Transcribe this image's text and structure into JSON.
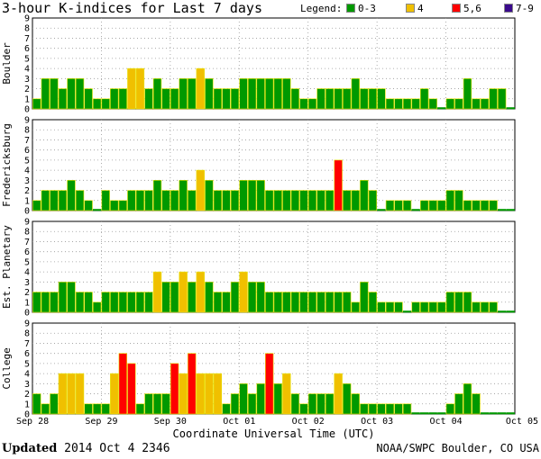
{
  "chart_data": {
    "type": "bar",
    "title": "3-hour K-indices for Last 7 days",
    "legend": {
      "label": "Legend:",
      "entries": [
        {
          "label": "0-3",
          "color": "#009900"
        },
        {
          "label": "4",
          "color": "#f0c000"
        },
        {
          "label": "5,6",
          "color": "#ff0000"
        },
        {
          "label": "7-9",
          "color": "#3a0a8c"
        }
      ]
    },
    "xlabel": "Coordinate Universal Time (UTC)",
    "x_ticks": [
      "Sep 28",
      "Sep 29",
      "Sep 30",
      "Oct 01",
      "Oct 02",
      "Oct 03",
      "Oct 04",
      "Oct 05"
    ],
    "y_ticks": [
      "0",
      "1",
      "2",
      "3",
      "4",
      "5",
      "6",
      "7",
      "8",
      "9"
    ],
    "ylim": [
      0,
      9
    ],
    "panels": [
      {
        "name": "Boulder",
        "values": [
          1,
          3,
          3,
          2,
          3,
          3,
          2,
          1,
          1,
          2,
          2,
          4,
          4,
          2,
          3,
          2,
          2,
          3,
          3,
          4,
          3,
          2,
          2,
          2,
          3,
          3,
          3,
          3,
          3,
          3,
          2,
          1,
          1,
          2,
          2,
          2,
          2,
          3,
          2,
          2,
          2,
          1,
          1,
          1,
          1,
          2,
          1,
          0,
          1,
          1,
          3,
          1,
          1,
          2,
          2,
          0
        ]
      },
      {
        "name": "Fredericksburg",
        "values": [
          1,
          2,
          2,
          2,
          3,
          2,
          1,
          0,
          2,
          1,
          1,
          2,
          2,
          2,
          3,
          2,
          2,
          3,
          2,
          4,
          3,
          2,
          2,
          2,
          3,
          3,
          3,
          2,
          2,
          2,
          2,
          2,
          2,
          2,
          2,
          5,
          2,
          2,
          3,
          2,
          0,
          1,
          1,
          1,
          0,
          1,
          1,
          1,
          2,
          2,
          1,
          1,
          1,
          1,
          0,
          0
        ]
      },
      {
        "name": "Est. Planetary",
        "values": [
          2,
          2,
          2,
          3,
          3,
          2,
          2,
          1,
          2,
          2,
          2,
          2,
          2,
          2,
          4,
          3,
          3,
          4,
          3,
          4,
          3,
          2,
          2,
          3,
          4,
          3,
          3,
          2,
          2,
          2,
          2,
          2,
          2,
          2,
          2,
          2,
          2,
          1,
          3,
          2,
          1,
          1,
          1,
          0,
          1,
          1,
          1,
          1,
          2,
          2,
          2,
          1,
          1,
          1,
          0,
          0
        ]
      },
      {
        "name": "College",
        "values": [
          2,
          1,
          2,
          4,
          4,
          4,
          1,
          1,
          1,
          4,
          6,
          5,
          1,
          2,
          2,
          2,
          5,
          4,
          6,
          4,
          4,
          4,
          1,
          2,
          3,
          2,
          3,
          6,
          3,
          4,
          2,
          1,
          2,
          2,
          2,
          4,
          3,
          2,
          1,
          1,
          1,
          1,
          1,
          1,
          0,
          0,
          0,
          0,
          1,
          2,
          3,
          2,
          0,
          0,
          0,
          0
        ]
      }
    ]
  },
  "footer": {
    "updated_label": "Updated",
    "updated_value": "2014 Oct  4 2346",
    "credit": "NOAA/SWPC Boulder, CO USA"
  }
}
